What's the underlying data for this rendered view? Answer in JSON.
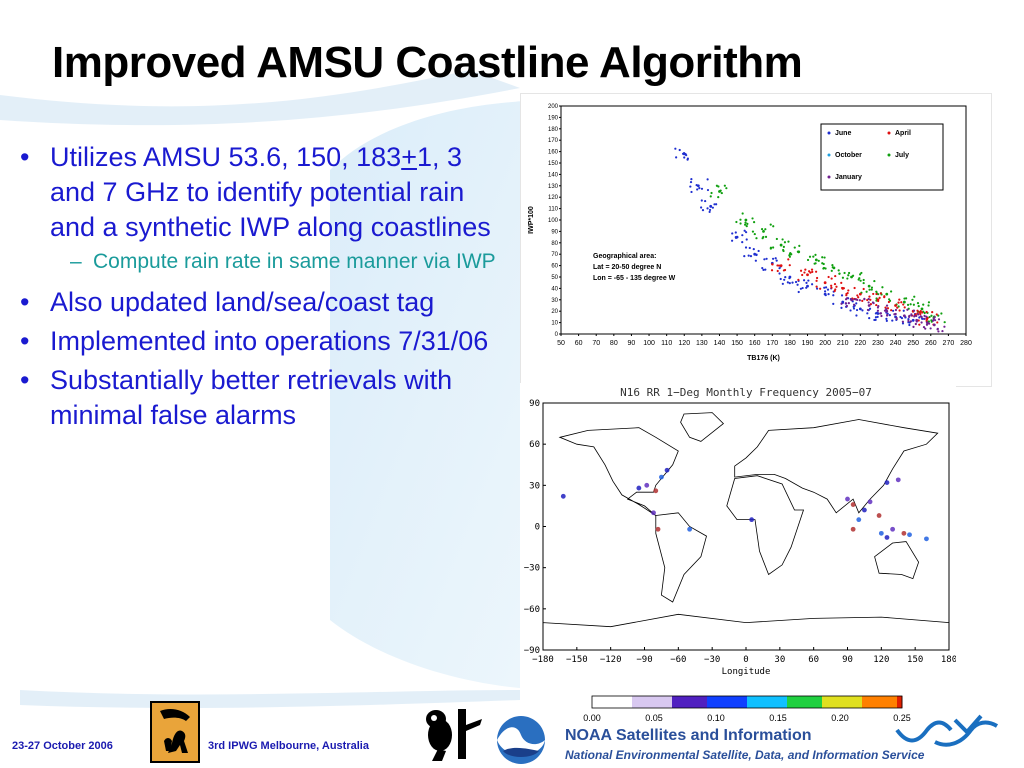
{
  "slide": {
    "title": "Improved AMSU Coastline Algorithm",
    "bullets": [
      {
        "pre": "Utilizes AMSU 53.6, 150, 183",
        "u": "+",
        "post": "1, 3 and 7 GHz to identify potential rain and a synthetic IWP along coastlines"
      },
      {
        "text": "Also updated land/sea/coast tag"
      },
      {
        "text": "Implemented into operations 7/31/06"
      },
      {
        "text": "Substantially better retrievals with minimal false alarms"
      }
    ],
    "sub_bullet": "Compute rain rate in same manner via IWP",
    "footer": {
      "date": "23-27 October 2006",
      "conference": "3rd IPWG  Melbourne, Australia",
      "noaa_line1": "NOAA Satellites and Information",
      "noaa_line2": "National Environmental Satellite, Data, and Information Service"
    }
  },
  "chart_data": [
    {
      "type": "scatter",
      "xlabel": "TB176 (K)",
      "ylabel": "IWP*100",
      "xlim": [
        50,
        280
      ],
      "ylim": [
        0,
        200
      ],
      "xticks": [
        50,
        60,
        70,
        80,
        90,
        100,
        110,
        120,
        130,
        140,
        150,
        160,
        170,
        180,
        190,
        200,
        210,
        220,
        230,
        240,
        250,
        260,
        270,
        280
      ],
      "yticks": [
        0,
        10,
        20,
        30,
        40,
        50,
        60,
        70,
        80,
        90,
        100,
        110,
        120,
        130,
        140,
        150,
        160,
        170,
        180,
        190,
        200
      ],
      "legend": [
        "June",
        "April",
        "October",
        "July",
        "January"
      ],
      "legend_colors": [
        "#1f2fd0",
        "#e01010",
        "#20a0e0",
        "#10a010",
        "#702090"
      ],
      "annotation": [
        "Geographical area:",
        "Lat = 20-50 degree N",
        "Lon = -65 - 135 degree W"
      ],
      "series": [
        {
          "name": "June",
          "points": [
            [
              120,
              158
            ],
            [
              128,
              130
            ],
            [
              135,
              112
            ],
            [
              150,
              85
            ],
            [
              160,
              70
            ],
            [
              170,
              62
            ],
            [
              180,
              50
            ],
            [
              190,
              42
            ],
            [
              200,
              35
            ],
            [
              210,
              28
            ],
            [
              220,
              22
            ],
            [
              230,
              18
            ],
            [
              240,
              15
            ],
            [
              250,
              12
            ]
          ]
        },
        {
          "name": "July",
          "points": [
            [
              140,
              125
            ],
            [
              155,
              100
            ],
            [
              165,
              90
            ],
            [
              175,
              78
            ],
            [
              185,
              72
            ],
            [
              195,
              65
            ],
            [
              205,
              58
            ],
            [
              215,
              50
            ],
            [
              225,
              42
            ],
            [
              235,
              35
            ],
            [
              245,
              28
            ],
            [
              255,
              22
            ],
            [
              262,
              15
            ]
          ]
        },
        {
          "name": "April",
          "points": [
            [
              175,
              60
            ],
            [
              190,
              52
            ],
            [
              200,
              45
            ],
            [
              210,
              40
            ],
            [
              220,
              35
            ],
            [
              230,
              30
            ],
            [
              240,
              25
            ],
            [
              250,
              20
            ],
            [
              258,
              14
            ]
          ]
        },
        {
          "name": "January",
          "points": [
            [
              215,
              30
            ],
            [
              225,
              25
            ],
            [
              235,
              20
            ],
            [
              245,
              16
            ],
            [
              252,
              12
            ],
            [
              258,
              10
            ],
            [
              262,
              8
            ]
          ]
        }
      ]
    },
    {
      "type": "heatmap",
      "title": "N16 RR 1−Deg Monthly Frequency 2005−07",
      "xlabel": "Longitude",
      "xticks": [
        "−180",
        "−150",
        "−120",
        "−90",
        "−60",
        "−30",
        "0",
        "30",
        "60",
        "90",
        "120",
        "150",
        "180"
      ],
      "yticks": [
        "90",
        "60",
        "30",
        "0",
        "−30",
        "−60",
        "−90"
      ],
      "colorbar_ticks": [
        "0.00",
        "0.05",
        "0.10",
        "0.15",
        "0.20",
        "0.25"
      ]
    }
  ]
}
